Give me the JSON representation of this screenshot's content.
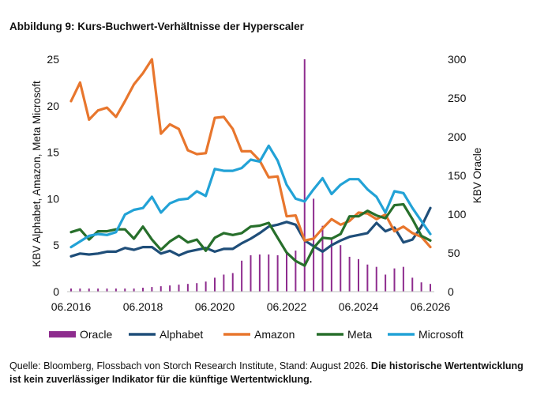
{
  "title": "Abbildung 9: Kurs-Buchwert-Verhältnisse der Hyperscaler",
  "source": {
    "text": "Quelle: Bloomberg, Flossbach von Storch Research Institute, Stand: August 2026.",
    "bold": "Die historische Wertentwicklung ist kein zuverlässiger Indikator für die künftige Wertentwicklung."
  },
  "chart_data": {
    "type": "line",
    "x_start": 2016.5,
    "x_end": 2026.5,
    "x_ticks": [
      2016.5,
      2018.5,
      2020.5,
      2022.5,
      2024.5,
      2026.5
    ],
    "x_tick_labels": [
      "06.2016",
      "06.2018",
      "06.2020",
      "06.2022",
      "06.2024",
      "06.2026"
    ],
    "ylabel": "KBV Alphabet, Amazon, Meta Microsoft",
    "ylim": [
      0,
      25
    ],
    "y_ticks": [
      0,
      5,
      10,
      15,
      20,
      25
    ],
    "y2label": "KBV Oracle",
    "y2lim": [
      0,
      300
    ],
    "y2_ticks": [
      0,
      50,
      100,
      150,
      200,
      250,
      300
    ],
    "legend": "bottom",
    "grid": false,
    "series": [
      {
        "name": "Oracle",
        "kind": "bar",
        "axis": "right",
        "color": "#8e2c8e",
        "x": [
          2016.5,
          2016.75,
          2017.0,
          2017.25,
          2017.5,
          2017.75,
          2018.0,
          2018.25,
          2018.5,
          2018.75,
          2019.0,
          2019.25,
          2019.5,
          2019.75,
          2020.0,
          2020.25,
          2020.5,
          2020.75,
          2021.0,
          2021.25,
          2021.5,
          2021.75,
          2022.0,
          2022.25,
          2022.5,
          2022.75,
          2023.0,
          2023.25,
          2023.5,
          2023.75,
          2024.0,
          2024.25,
          2024.5,
          2024.75,
          2025.0,
          2025.25,
          2025.5,
          2025.75,
          2026.0,
          2026.25,
          2026.5
        ],
        "values": [
          4,
          4,
          4,
          4,
          4,
          4,
          4,
          4,
          5,
          6,
          7,
          8,
          9,
          10,
          11,
          13,
          18,
          22,
          24,
          40,
          47,
          48,
          48,
          47,
          49,
          53,
          300,
          120,
          85,
          70,
          60,
          45,
          42,
          35,
          32,
          22,
          30,
          32,
          18,
          12,
          10
        ]
      },
      {
        "name": "Alphabet",
        "kind": "line",
        "axis": "left",
        "color": "#1f4e79",
        "x": [
          2016.5,
          2016.75,
          2017.0,
          2017.25,
          2017.5,
          2017.75,
          2018.0,
          2018.25,
          2018.5,
          2018.75,
          2019.0,
          2019.25,
          2019.5,
          2019.75,
          2020.0,
          2020.25,
          2020.5,
          2020.75,
          2021.0,
          2021.25,
          2021.5,
          2021.75,
          2022.0,
          2022.25,
          2022.5,
          2022.75,
          2023.0,
          2023.25,
          2023.5,
          2023.75,
          2024.0,
          2024.25,
          2024.5,
          2024.75,
          2025.0,
          2025.25,
          2025.5,
          2025.75,
          2026.0,
          2026.25,
          2026.5
        ],
        "values": [
          3.8,
          4.1,
          4.0,
          4.1,
          4.3,
          4.3,
          4.7,
          4.5,
          4.8,
          4.8,
          4.1,
          4.4,
          3.9,
          4.3,
          4.5,
          4.7,
          4.3,
          4.6,
          4.6,
          5.2,
          5.7,
          6.3,
          7.0,
          7.2,
          7.5,
          7.2,
          5.5,
          4.9,
          4.3,
          5.0,
          5.5,
          5.9,
          6.1,
          6.3,
          7.4,
          6.5,
          6.9,
          5.3,
          5.6,
          7.0,
          9.0
        ]
      },
      {
        "name": "Amazon",
        "kind": "line",
        "axis": "left",
        "color": "#e8762d",
        "x": [
          2016.5,
          2016.75,
          2017.0,
          2017.25,
          2017.5,
          2017.75,
          2018.0,
          2018.25,
          2018.5,
          2018.75,
          2019.0,
          2019.25,
          2019.5,
          2019.75,
          2020.0,
          2020.25,
          2020.5,
          2020.75,
          2021.0,
          2021.25,
          2021.5,
          2021.75,
          2022.0,
          2022.25,
          2022.5,
          2022.75,
          2023.0,
          2023.25,
          2023.5,
          2023.75,
          2024.0,
          2024.25,
          2024.5,
          2024.75,
          2025.0,
          2025.25,
          2025.5,
          2025.75,
          2026.0,
          2026.25,
          2026.5
        ],
        "values": [
          20.5,
          22.5,
          18.5,
          19.5,
          19.8,
          18.8,
          20.5,
          22.3,
          23.5,
          25.0,
          17.0,
          18.0,
          17.5,
          15.2,
          14.8,
          14.9,
          18.7,
          18.8,
          17.5,
          15.1,
          15.1,
          14.1,
          12.3,
          12.4,
          8.1,
          8.2,
          5.5,
          5.7,
          6.8,
          7.8,
          7.2,
          7.6,
          8.5,
          8.4,
          7.8,
          8.3,
          6.5,
          7.0,
          6.3,
          5.9,
          4.8
        ]
      },
      {
        "name": "Meta",
        "kind": "line",
        "axis": "left",
        "color": "#276f2b",
        "x": [
          2016.5,
          2016.75,
          2017.0,
          2017.25,
          2017.5,
          2017.75,
          2018.0,
          2018.25,
          2018.5,
          2018.75,
          2019.0,
          2019.25,
          2019.5,
          2019.75,
          2020.0,
          2020.25,
          2020.5,
          2020.75,
          2021.0,
          2021.25,
          2021.5,
          2021.75,
          2022.0,
          2022.25,
          2022.5,
          2022.75,
          2023.0,
          2023.25,
          2023.5,
          2023.75,
          2024.0,
          2024.25,
          2024.5,
          2024.75,
          2025.0,
          2025.25,
          2025.5,
          2025.75,
          2026.0,
          2026.25,
          2026.5
        ],
        "values": [
          6.4,
          6.7,
          5.6,
          6.5,
          6.5,
          6.7,
          6.7,
          5.7,
          7.0,
          5.6,
          4.5,
          5.4,
          6.0,
          5.3,
          5.6,
          4.4,
          5.8,
          6.3,
          6.1,
          6.3,
          7.0,
          7.1,
          7.4,
          5.8,
          4.2,
          3.3,
          2.8,
          4.7,
          5.8,
          5.7,
          6.2,
          8.1,
          8.1,
          8.7,
          8.2,
          7.9,
          9.3,
          9.4,
          7.8,
          6.0,
          5.5
        ]
      },
      {
        "name": "Microsoft",
        "kind": "line",
        "axis": "left",
        "color": "#22a2d6",
        "x": [
          2016.5,
          2016.75,
          2017.0,
          2017.25,
          2017.5,
          2017.75,
          2018.0,
          2018.25,
          2018.5,
          2018.75,
          2019.0,
          2019.25,
          2019.5,
          2019.75,
          2020.0,
          2020.25,
          2020.5,
          2020.75,
          2021.0,
          2021.25,
          2021.5,
          2021.75,
          2022.0,
          2022.25,
          2022.5,
          2022.75,
          2023.0,
          2023.25,
          2023.5,
          2023.75,
          2024.0,
          2024.25,
          2024.5,
          2024.75,
          2025.0,
          2025.25,
          2025.5,
          2025.75,
          2026.0,
          2026.25,
          2026.5
        ],
        "values": [
          4.8,
          5.4,
          6.0,
          6.2,
          6.1,
          6.4,
          8.3,
          8.8,
          9.0,
          10.2,
          8.5,
          9.5,
          9.9,
          10.0,
          10.8,
          10.3,
          13.2,
          13.0,
          13.0,
          13.3,
          14.2,
          14.0,
          15.7,
          14.1,
          11.5,
          10.0,
          9.7,
          11.0,
          12.2,
          10.5,
          11.5,
          12.1,
          12.1,
          11.0,
          10.2,
          8.5,
          10.8,
          10.6,
          9.0,
          7.6,
          6.2
        ]
      }
    ]
  }
}
